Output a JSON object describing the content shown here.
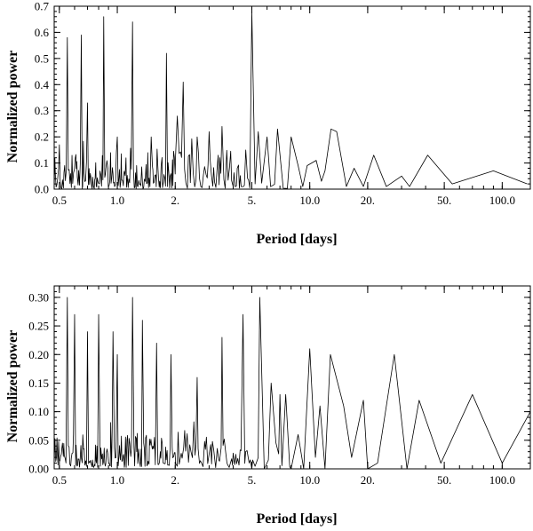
{
  "chart_data": [
    {
      "type": "line",
      "xscale": "log",
      "xlim": [
        0.47,
        140
      ],
      "ylim": [
        0,
        0.7
      ],
      "xlabel": "Period [days]",
      "ylabel": "Normalized power",
      "xticks": [
        0.5,
        1.0,
        2.0,
        5.0,
        10.0,
        20.0,
        50.0,
        100.0
      ],
      "xtick_labels": [
        "0.5",
        "1.0",
        "2.",
        "5.",
        "10.0",
        "20.",
        "50.",
        "100.0"
      ],
      "yticks": [
        0.0,
        0.1,
        0.2,
        0.3,
        0.4,
        0.5,
        0.6,
        0.7
      ],
      "ytick_labels": [
        "0.0",
        "0.1",
        "0.2",
        "0.3",
        "0.4",
        "0.5",
        "0.6",
        "0.7"
      ],
      "grid": false,
      "series": [
        {
          "color": "#000000",
          "peaks": [
            {
              "x": 0.5,
              "y": 0.17
            },
            {
              "x": 0.55,
              "y": 0.58
            },
            {
              "x": 0.65,
              "y": 0.59
            },
            {
              "x": 0.7,
              "y": 0.33
            },
            {
              "x": 0.85,
              "y": 0.66
            },
            {
              "x": 1.0,
              "y": 0.2
            },
            {
              "x": 1.2,
              "y": 0.64
            },
            {
              "x": 1.5,
              "y": 0.2
            },
            {
              "x": 1.8,
              "y": 0.52
            },
            {
              "x": 2.05,
              "y": 0.28
            },
            {
              "x": 2.2,
              "y": 0.41
            },
            {
              "x": 2.6,
              "y": 0.2
            },
            {
              "x": 3.0,
              "y": 0.22
            },
            {
              "x": 3.5,
              "y": 0.24
            },
            {
              "x": 4.2,
              "y": 0.08
            },
            {
              "x": 4.65,
              "y": 0.15
            },
            {
              "x": 5.0,
              "y": 0.68
            },
            {
              "x": 5.4,
              "y": 0.22
            },
            {
              "x": 6.0,
              "y": 0.2
            },
            {
              "x": 6.8,
              "y": 0.23
            },
            {
              "x": 8.0,
              "y": 0.2
            },
            {
              "x": 8.7,
              "y": 0.09
            },
            {
              "x": 9.7,
              "y": 0.09
            },
            {
              "x": 10.8,
              "y": 0.11
            },
            {
              "x": 12.0,
              "y": 0.07
            },
            {
              "x": 12.9,
              "y": 0.23
            },
            {
              "x": 13.8,
              "y": 0.22
            },
            {
              "x": 17.0,
              "y": 0.08
            },
            {
              "x": 21.5,
              "y": 0.13
            },
            {
              "x": 30.0,
              "y": 0.05
            },
            {
              "x": 41.0,
              "y": 0.13
            },
            {
              "x": 90.0,
              "y": 0.07
            }
          ],
          "valleys": [
            {
              "x": 4.0,
              "y": 0.01
            },
            {
              "x": 4.4,
              "y": 0.01
            },
            {
              "x": 5.2,
              "y": 0.02
            },
            {
              "x": 9.2,
              "y": 0.01
            },
            {
              "x": 11.5,
              "y": 0.03
            },
            {
              "x": 15.5,
              "y": 0.01
            },
            {
              "x": 19.0,
              "y": 0.01
            },
            {
              "x": 25.0,
              "y": 0.01
            },
            {
              "x": 33.0,
              "y": 0.01
            },
            {
              "x": 55.0,
              "y": 0.02
            },
            {
              "x": 135.0,
              "y": 0.02
            }
          ]
        }
      ]
    },
    {
      "type": "line",
      "xscale": "log",
      "xlim": [
        0.47,
        140
      ],
      "ylim": [
        0,
        0.32
      ],
      "xlabel": "Period [days]",
      "ylabel": "Normalized power",
      "xticks": [
        0.5,
        1.0,
        2.0,
        5.0,
        10.0,
        20.0,
        50.0,
        100.0
      ],
      "xtick_labels": [
        "0.5",
        "1.0",
        "2.",
        "5.",
        "10.0",
        "20.",
        "50.",
        "100.0"
      ],
      "yticks": [
        0.0,
        0.05,
        0.1,
        0.15,
        0.2,
        0.25,
        0.3
      ],
      "ytick_labels": [
        "0.00",
        "0.05",
        "0.10",
        "0.15",
        "0.20",
        "0.25",
        "0.30"
      ],
      "grid": false,
      "series": [
        {
          "color": "#000000",
          "peaks": [
            {
              "x": 0.55,
              "y": 0.3
            },
            {
              "x": 0.6,
              "y": 0.27
            },
            {
              "x": 0.7,
              "y": 0.24
            },
            {
              "x": 0.8,
              "y": 0.27
            },
            {
              "x": 0.95,
              "y": 0.24
            },
            {
              "x": 1.0,
              "y": 0.2
            },
            {
              "x": 1.2,
              "y": 0.3
            },
            {
              "x": 1.35,
              "y": 0.26
            },
            {
              "x": 1.6,
              "y": 0.22
            },
            {
              "x": 1.9,
              "y": 0.2
            },
            {
              "x": 2.6,
              "y": 0.16
            },
            {
              "x": 3.5,
              "y": 0.23
            },
            {
              "x": 4.5,
              "y": 0.27
            },
            {
              "x": 5.5,
              "y": 0.3
            },
            {
              "x": 6.3,
              "y": 0.15
            },
            {
              "x": 7.0,
              "y": 0.13
            },
            {
              "x": 7.5,
              "y": 0.13
            },
            {
              "x": 8.7,
              "y": 0.06
            },
            {
              "x": 10.0,
              "y": 0.21
            },
            {
              "x": 11.3,
              "y": 0.11
            },
            {
              "x": 12.8,
              "y": 0.2
            },
            {
              "x": 15.0,
              "y": 0.11
            },
            {
              "x": 19.0,
              "y": 0.12
            },
            {
              "x": 27.5,
              "y": 0.2
            },
            {
              "x": 37.0,
              "y": 0.12
            },
            {
              "x": 70.0,
              "y": 0.13
            },
            {
              "x": 140.0,
              "y": 0.1
            }
          ],
          "valleys": [
            {
              "x": 5.0,
              "y": 0.0
            },
            {
              "x": 5.8,
              "y": 0.0
            },
            {
              "x": 8.0,
              "y": 0.0
            },
            {
              "x": 9.3,
              "y": 0.0
            },
            {
              "x": 10.7,
              "y": 0.02
            },
            {
              "x": 12.0,
              "y": 0.0
            },
            {
              "x": 16.5,
              "y": 0.02
            },
            {
              "x": 20.0,
              "y": 0.0
            },
            {
              "x": 22.5,
              "y": 0.01
            },
            {
              "x": 32.0,
              "y": 0.0
            },
            {
              "x": 48.0,
              "y": 0.01
            },
            {
              "x": 100.0,
              "y": 0.01
            }
          ]
        }
      ]
    }
  ]
}
